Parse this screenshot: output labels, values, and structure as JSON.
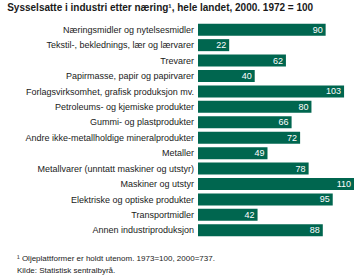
{
  "chart_data": {
    "type": "bar",
    "orientation": "horizontal",
    "title": "Sysselsatte i industri etter næring¹, hele landet, 2000. 1972 = 100",
    "categories": [
      "Næringsmidler og nytelsesmidler",
      "Tekstil-, beklednings, lær og lærvarer",
      "Trevarer",
      "Papirmasse, papir og papirvarer",
      "Forlagsvirksomhet, grafisk produksjon mv.",
      "Petroleums- og kjemiske produkter",
      "Gummi- og plastprodukter",
      "Andre ikke-metallholdige mineralprodukter",
      "Metaller",
      "Metallvarer (unntatt maskiner og utstyr)",
      "Maskiner og utstyr",
      "Elektriske og optiske produkter",
      "Transportmidler",
      "Annen industriproduksjon"
    ],
    "values": [
      90,
      22,
      62,
      40,
      103,
      80,
      66,
      72,
      49,
      78,
      110,
      95,
      42,
      88
    ],
    "color": "#00664f",
    "xlim": [
      0,
      110
    ],
    "grid": false,
    "tick_labels": "y",
    "data_labels": true,
    "annotations": [
      "¹ Oljeplattformer er holdt utenom. 1973=100, 2000=737.",
      "Kilde: Statistisk sentralbyrå."
    ]
  }
}
